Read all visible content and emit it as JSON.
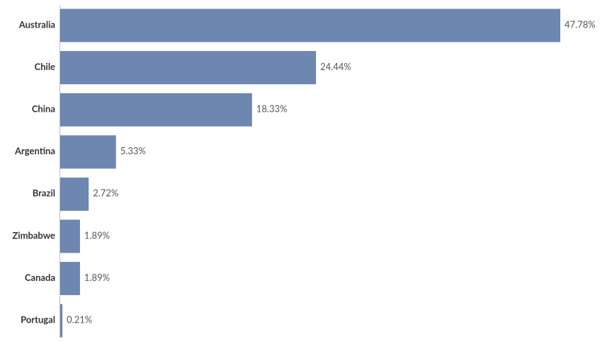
{
  "chart_data": {
    "type": "bar",
    "orientation": "horizontal",
    "categories": [
      "Australia",
      "Chile",
      "China",
      "Argentina",
      "Brazil",
      "Zimbabwe",
      "Canada",
      "Portugal"
    ],
    "values": [
      47.78,
      24.44,
      18.33,
      5.33,
      2.72,
      1.89,
      1.89,
      0.21
    ],
    "value_labels": [
      "47.78%",
      "24.44%",
      "18.33%",
      "5.33%",
      "2.72%",
      "1.89%",
      "1.89%",
      "0.21%"
    ],
    "color": "#6e87b0"
  }
}
